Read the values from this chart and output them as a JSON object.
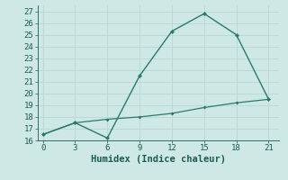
{
  "xlabel": "Humidex (Indice chaleur)",
  "x": [
    0,
    3,
    6,
    9,
    12,
    15,
    18,
    21
  ],
  "y_upper": [
    16.5,
    17.5,
    16.2,
    21.5,
    25.3,
    26.8,
    25.0,
    19.5
  ],
  "y_lower": [
    16.5,
    17.5,
    17.8,
    18.0,
    18.3,
    18.8,
    19.2,
    19.5
  ],
  "xlim": [
    -0.5,
    22
  ],
  "ylim": [
    16,
    27.5
  ],
  "yticks": [
    16,
    17,
    18,
    19,
    20,
    21,
    22,
    23,
    24,
    25,
    26,
    27
  ],
  "xticks": [
    0,
    3,
    6,
    9,
    12,
    15,
    18,
    21
  ],
  "line_color": "#2a7a6e",
  "bg_color": "#cde8e5",
  "grid_color": "#b8d8d4",
  "font_color": "#1a5c52",
  "tick_fontsize": 6.5,
  "xlabel_fontsize": 7.5
}
